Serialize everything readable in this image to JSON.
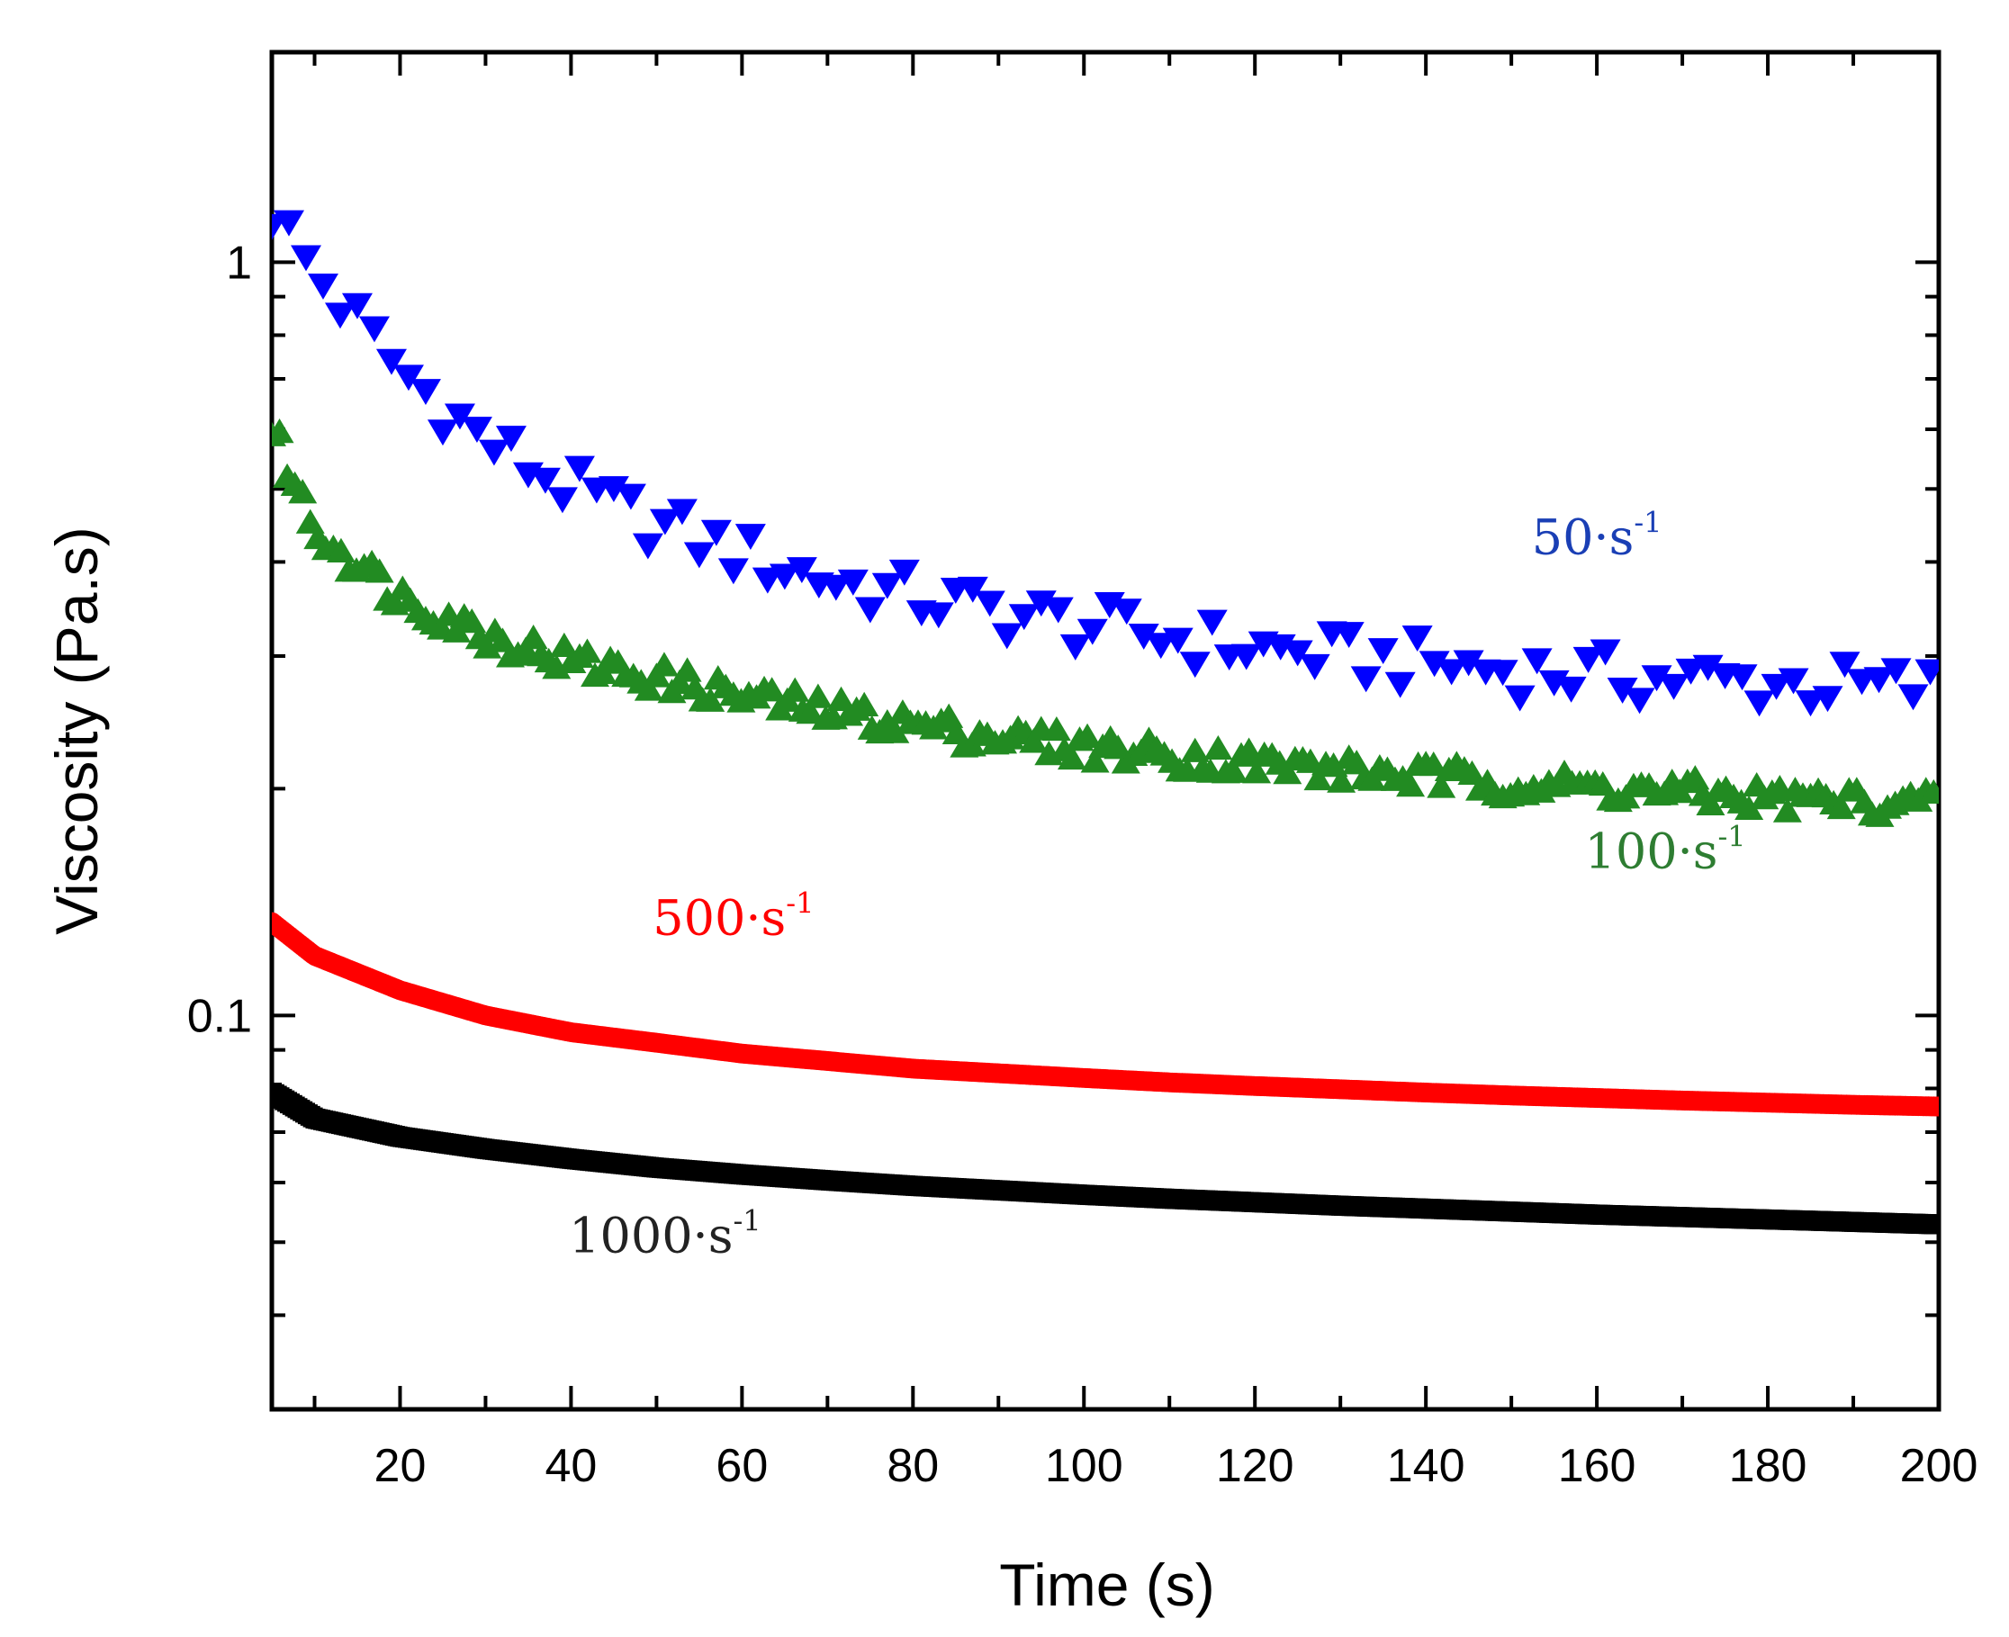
{
  "chart_data": {
    "type": "scatter",
    "title": "",
    "xlabel": "Time (s)",
    "ylabel": "Viscosity (Pa.s)",
    "xlim": [
      5,
      200
    ],
    "ylim": [
      0.03,
      1.9
    ],
    "yscale": "log",
    "x_ticks": [
      20,
      40,
      60,
      80,
      100,
      120,
      140,
      160,
      180,
      200
    ],
    "x_tick_labels": [
      "20",
      "40",
      "60",
      "80",
      "100",
      "120",
      "140",
      "160",
      "180",
      "200"
    ],
    "y_ticks": [
      0.1,
      1
    ],
    "y_tick_labels": [
      "0.1",
      "1"
    ],
    "grid": false,
    "series": [
      {
        "name": "50·s-1",
        "label_main": "50·s",
        "label_exp": "-1",
        "label_anchor": [
          160,
          0.41
        ],
        "color": "#0000ff",
        "label_color": "#1a3fb5",
        "marker": "triangle-down",
        "x": [
          5,
          10,
          20,
          30,
          40,
          50,
          60,
          70,
          80,
          90,
          100,
          110,
          120,
          130,
          140,
          150,
          160,
          170,
          180,
          190,
          200
        ],
        "values": [
          1.18,
          0.97,
          0.72,
          0.58,
          0.5,
          0.45,
          0.41,
          0.38,
          0.36,
          0.345,
          0.33,
          0.318,
          0.308,
          0.3,
          0.294,
          0.288,
          0.283,
          0.28,
          0.277,
          0.274,
          0.272
        ]
      },
      {
        "name": "100·s-1",
        "label_main": "100·s",
        "label_exp": "-1",
        "label_anchor": [
          168,
          0.157
        ],
        "color": "#228b22",
        "label_color": "#2e7d32",
        "marker": "triangle-up",
        "x": [
          5,
          10,
          20,
          30,
          40,
          50,
          60,
          70,
          80,
          90,
          100,
          110,
          120,
          130,
          140,
          150,
          160,
          170,
          180,
          190,
          200
        ],
        "values": [
          0.6,
          0.44,
          0.36,
          0.32,
          0.295,
          0.28,
          0.265,
          0.253,
          0.243,
          0.234,
          0.227,
          0.221,
          0.216,
          0.211,
          0.207,
          0.203,
          0.2,
          0.197,
          0.194,
          0.192,
          0.19
        ]
      },
      {
        "name": "500·s-1",
        "label_main": "500·s",
        "label_exp": "-1",
        "label_anchor": [
          59,
          0.128
        ],
        "color": "#ff0000",
        "label_color": "#ff0000",
        "marker": "circle",
        "x": [
          5,
          10,
          20,
          30,
          40,
          50,
          60,
          70,
          80,
          90,
          100,
          110,
          120,
          130,
          140,
          150,
          160,
          170,
          180,
          190,
          200
        ],
        "values": [
          0.133,
          0.12,
          0.108,
          0.1,
          0.095,
          0.092,
          0.089,
          0.087,
          0.085,
          0.0838,
          0.0826,
          0.0815,
          0.0806,
          0.0798,
          0.079,
          0.0783,
          0.0777,
          0.0771,
          0.0766,
          0.0761,
          0.0757
        ]
      },
      {
        "name": "1000·s-1",
        "label_main": "1000·s",
        "label_exp": "-1",
        "label_anchor": [
          51,
          0.0485
        ],
        "color": "#000000",
        "label_color": "#222222",
        "marker": "square",
        "x": [
          5,
          10,
          20,
          30,
          40,
          50,
          60,
          70,
          80,
          90,
          100,
          110,
          120,
          130,
          140,
          150,
          160,
          170,
          180,
          190,
          200
        ],
        "values": [
          0.079,
          0.073,
          0.069,
          0.0665,
          0.0645,
          0.0628,
          0.0615,
          0.0604,
          0.0594,
          0.0586,
          0.0578,
          0.0571,
          0.0565,
          0.0559,
          0.0554,
          0.0549,
          0.0544,
          0.054,
          0.0536,
          0.0532,
          0.0528
        ]
      }
    ]
  }
}
